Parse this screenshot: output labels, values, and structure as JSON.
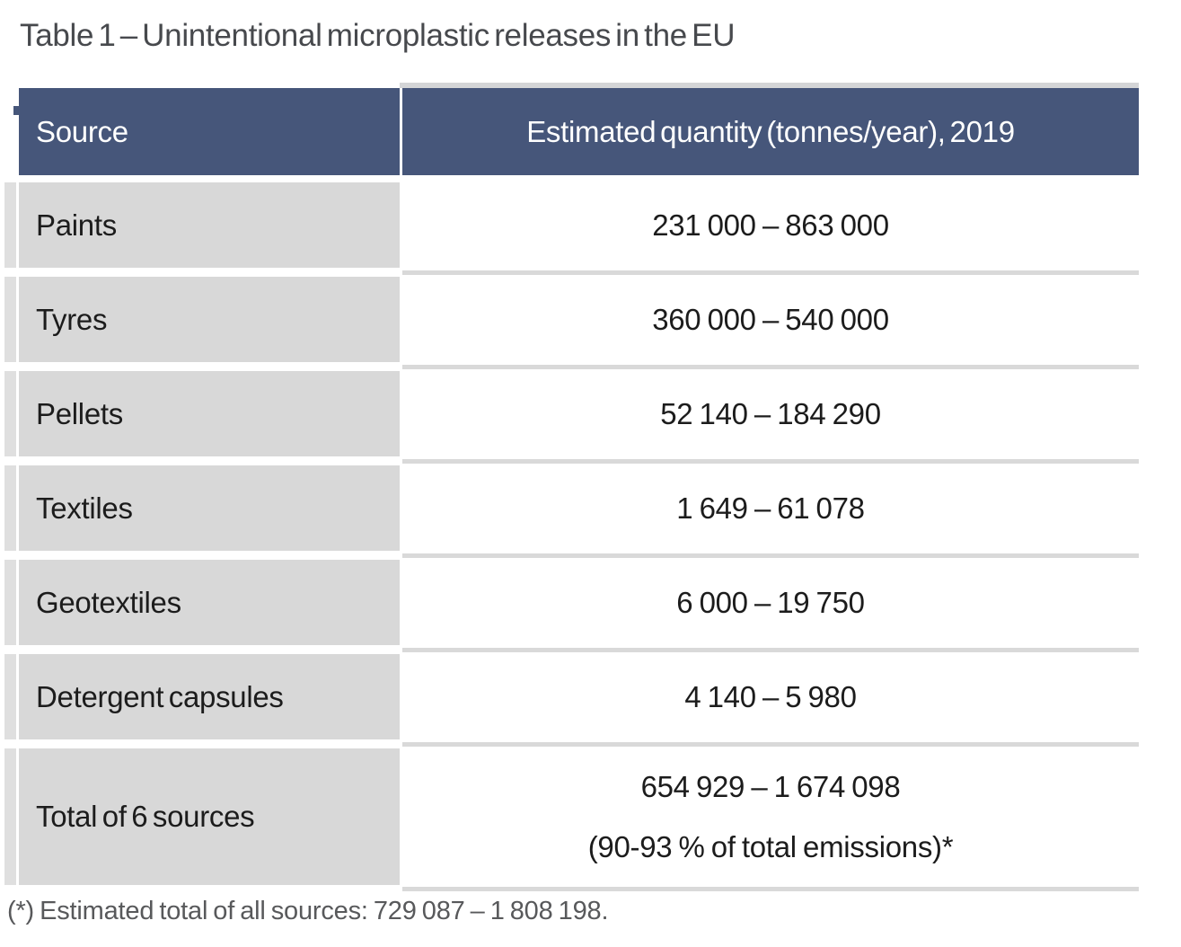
{
  "title": "Table 1 – Unintentional microplastic releases in the EU",
  "table": {
    "columns": {
      "source": "Source",
      "quantity": "Estimated quantity (tonnes/year), 2019"
    },
    "rows": [
      {
        "source": "Paints",
        "quantity": "231 000 – 863 000"
      },
      {
        "source": "Tyres",
        "quantity": "360 000 – 540 000"
      },
      {
        "source": "Pellets",
        "quantity": "52 140 – 184 290"
      },
      {
        "source": "Textiles",
        "quantity": "1 649 – 61 078"
      },
      {
        "source": "Geotextiles",
        "quantity": "6 000 – 19 750"
      },
      {
        "source": "Detergent capsules",
        "quantity": "4 140 – 5 980"
      },
      {
        "source": "Total of 6 sources",
        "quantity": "654 929 – 1 674 098",
        "quantity_note": "(90-93 % of total emissions)*"
      }
    ]
  },
  "footnote": "(*) Estimated total of all sources: 729 087 – 1 808 198.",
  "colors": {
    "header_bg": "#46567a",
    "header_text": "#ffffff",
    "cell_bg": "#d8d8d8",
    "separator": "#d9d9d9",
    "body_text": "#1c1c1c",
    "title_text": "#47494d",
    "footnote_text": "#58595b"
  }
}
